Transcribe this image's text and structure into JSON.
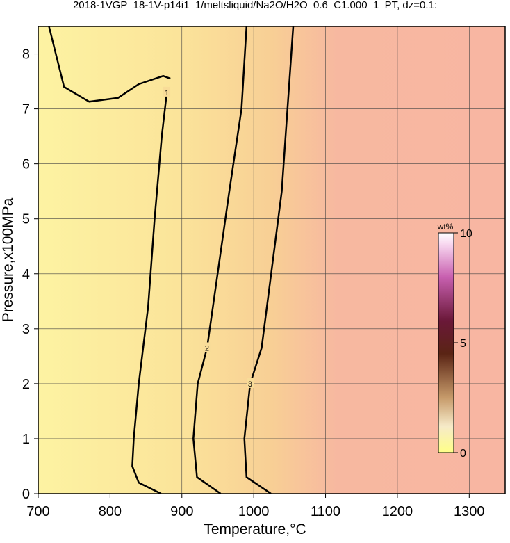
{
  "chart_data": {
    "type": "contour",
    "title": "2018-1VGP_18-1V-p14i1_1/meltsliquid/Na2O/H2O_0.6_C1.000_1_PT, dz=0.1:",
    "x_label": "Temperature,°C",
    "y_label": "Pressure,x100MPa",
    "xlim": [
      700,
      1350
    ],
    "xticks": [
      700,
      800,
      900,
      1000,
      1100,
      1200,
      1300
    ],
    "ylim": [
      0,
      8.5
    ],
    "yticks": [
      0,
      1,
      2,
      3,
      4,
      5,
      6,
      7,
      8
    ],
    "grid": true,
    "contours": [
      {
        "name": "1",
        "color": "#000000",
        "x": [
          871,
          840,
          831,
          833,
          840,
          853,
          862,
          872,
          879,
          null,
          715,
          736,
          771,
          811,
          840,
          874,
          884
        ],
        "y": [
          0,
          0.2,
          0.5,
          1,
          2,
          3.4,
          5,
          6.5,
          7.3,
          null,
          8.5,
          7.4,
          7.13,
          7.2,
          7.45,
          7.6,
          7.55
        ]
      },
      {
        "name": "2",
        "color": "#000000",
        "x": [
          954,
          921,
          916,
          922,
          935,
          966,
          983,
          990
        ],
        "y": [
          0,
          0.3,
          1,
          2,
          2.65,
          5.5,
          7,
          8.5
        ]
      },
      {
        "name": "3",
        "color": "#000000",
        "x": [
          1024,
          990,
          987,
          995,
          1011,
          1039,
          1055
        ],
        "y": [
          0,
          0.3,
          1,
          2,
          2.65,
          5.5,
          8.5
        ]
      }
    ],
    "colorbar": {
      "label": "wt%",
      "lim": [
        0,
        10
      ],
      "ticks": [
        0,
        5,
        10
      ]
    }
  }
}
